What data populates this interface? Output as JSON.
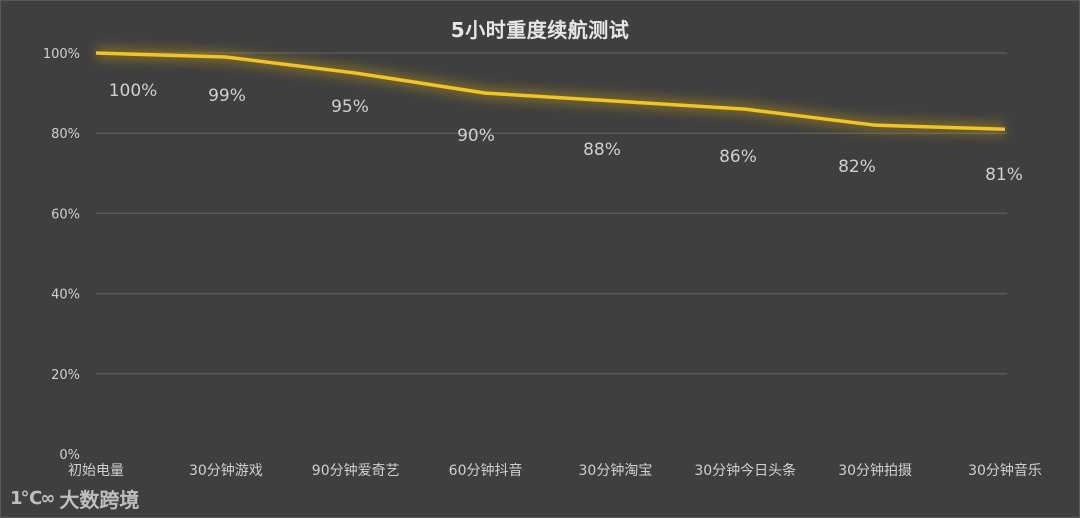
{
  "chart_data": {
    "type": "line",
    "title": "5小时重度续航测试",
    "xlabel": "",
    "ylabel": "",
    "categories": [
      "初始电量",
      "30分钟游戏",
      "90分钟爱奇艺",
      "60分钟抖音",
      "30分钟淘宝",
      "30分钟今日头条",
      "30分钟拍摄",
      "30分钟音乐"
    ],
    "series": [
      {
        "name": "电量",
        "values": [
          100,
          99,
          95,
          90,
          88,
          86,
          82,
          81
        ],
        "color": "#f5c518"
      }
    ],
    "data_labels": [
      "100%",
      "99%",
      "95%",
      "90%",
      "88%",
      "86%",
      "82%",
      "81%"
    ],
    "y_ticks": [
      "0%",
      "20%",
      "40%",
      "60%",
      "80%",
      "100%"
    ],
    "ylim": [
      0,
      100
    ],
    "grid": true,
    "legend": "none"
  },
  "colors": {
    "background": "#3f3f3f",
    "line": "#f5c518",
    "grid": "#595959",
    "text": "#d0d0d0"
  },
  "watermark": {
    "logo": "1℃∞",
    "text": "大数跨境"
  }
}
